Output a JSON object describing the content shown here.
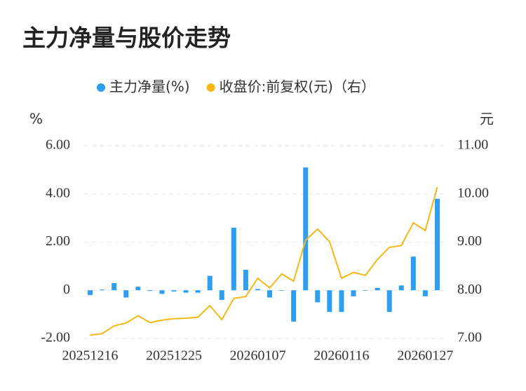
{
  "chart_data": {
    "type": "bar-line",
    "title": "主力净量与股价走势",
    "y_unit": "%",
    "y2_unit": "元",
    "categories": [
      "20251216",
      null,
      null,
      null,
      null,
      null,
      null,
      "20251225",
      null,
      null,
      null,
      null,
      null,
      null,
      "20260107",
      null,
      null,
      null,
      null,
      null,
      null,
      "20260116",
      null,
      null,
      null,
      null,
      null,
      null,
      "20260127",
      null
    ],
    "series": [
      {
        "name": "主力净量(%)",
        "type": "bar",
        "color": "#2e9ef0",
        "values": [
          -0.2,
          0.03,
          0.3,
          -0.3,
          0.15,
          -0.03,
          -0.15,
          -0.05,
          -0.1,
          -0.1,
          0.6,
          -0.4,
          2.6,
          0.85,
          0.05,
          -0.3,
          -0.02,
          -1.3,
          5.1,
          -0.5,
          -0.9,
          -0.9,
          -0.25,
          -0.02,
          0.1,
          -0.9,
          0.2,
          1.4,
          -0.25,
          3.8
        ]
      },
      {
        "name": "收盘价:前复权(元)（右）",
        "type": "line",
        "axis": "y2",
        "color": "#f5b715",
        "values": [
          7.07,
          7.1,
          7.26,
          7.32,
          7.47,
          7.33,
          7.38,
          7.41,
          7.42,
          7.44,
          7.68,
          7.39,
          7.83,
          7.87,
          8.25,
          8.05,
          8.34,
          8.19,
          9.04,
          9.27,
          9.01,
          8.25,
          8.37,
          8.31,
          8.64,
          8.89,
          8.93,
          9.4,
          9.24,
          10.14
        ]
      }
    ],
    "ylim": [
      -2,
      6
    ],
    "yticks": [
      {
        "value": -2,
        "label": "-2.00"
      },
      0,
      {
        "value": 2,
        "label": "2.00"
      },
      {
        "value": 4,
        "label": "4.00"
      },
      {
        "value": 6,
        "label": "6.00"
      }
    ],
    "y2lim": [
      7,
      11
    ],
    "y2ticks": [
      {
        "value": 7,
        "label": "7.00"
      },
      {
        "value": 8,
        "label": "8.00"
      },
      {
        "value": 9,
        "label": "9.00"
      },
      {
        "value": 10,
        "label": "10.00"
      },
      {
        "value": 11,
        "label": "11.00"
      }
    ],
    "grid": true,
    "legend": "top"
  }
}
